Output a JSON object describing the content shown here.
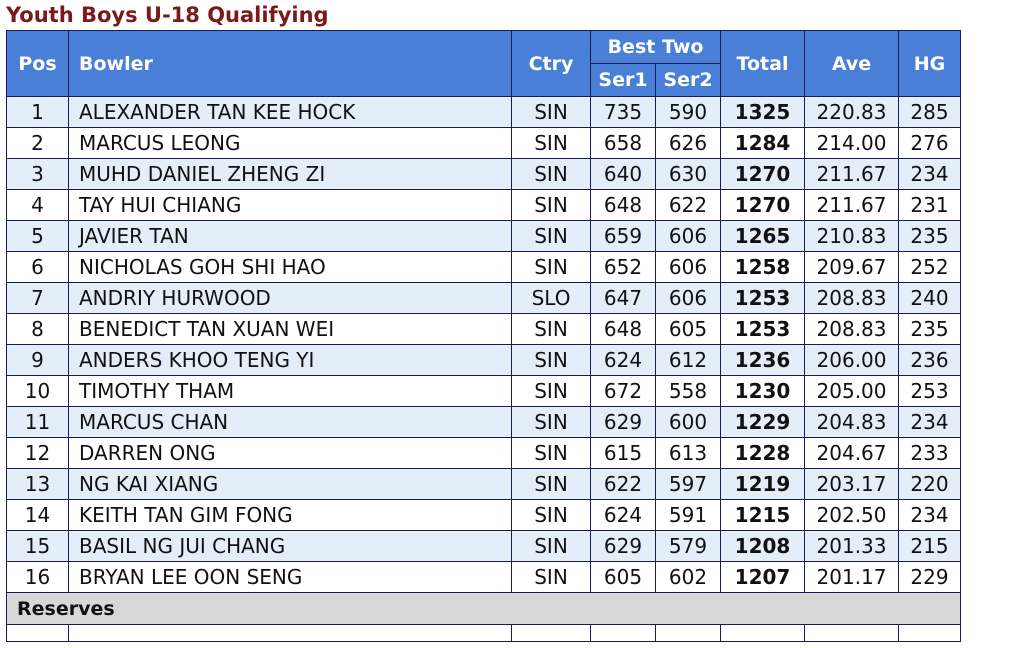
{
  "page": {
    "title": "Youth Boys U-18 Qualifying"
  },
  "table": {
    "headers": {
      "pos": "Pos",
      "bowler": "Bowler",
      "ctry": "Ctry",
      "best_two": "Best Two",
      "ser1": "Ser1",
      "ser2": "Ser2",
      "total": "Total",
      "ave": "Ave",
      "hg": "HG"
    },
    "rows": [
      {
        "pos": "1",
        "bowler": "ALEXANDER TAN KEE HOCK",
        "ctry": "SIN",
        "ser1": "735",
        "ser2": "590",
        "total": "1325",
        "ave": "220.83",
        "hg": "285"
      },
      {
        "pos": "2",
        "bowler": "MARCUS LEONG",
        "ctry": "SIN",
        "ser1": "658",
        "ser2": "626",
        "total": "1284",
        "ave": "214.00",
        "hg": "276"
      },
      {
        "pos": "3",
        "bowler": "MUHD DANIEL ZHENG ZI",
        "ctry": "SIN",
        "ser1": "640",
        "ser2": "630",
        "total": "1270",
        "ave": "211.67",
        "hg": "234"
      },
      {
        "pos": "4",
        "bowler": "TAY HUI CHIANG",
        "ctry": "SIN",
        "ser1": "648",
        "ser2": "622",
        "total": "1270",
        "ave": "211.67",
        "hg": "231"
      },
      {
        "pos": "5",
        "bowler": "JAVIER TAN",
        "ctry": "SIN",
        "ser1": "659",
        "ser2": "606",
        "total": "1265",
        "ave": "210.83",
        "hg": "235"
      },
      {
        "pos": "6",
        "bowler": "NICHOLAS GOH SHI HAO",
        "ctry": "SIN",
        "ser1": "652",
        "ser2": "606",
        "total": "1258",
        "ave": "209.67",
        "hg": "252"
      },
      {
        "pos": "7",
        "bowler": "ANDRIY HURWOOD",
        "ctry": "SLO",
        "ser1": "647",
        "ser2": "606",
        "total": "1253",
        "ave": "208.83",
        "hg": "240"
      },
      {
        "pos": "8",
        "bowler": "BENEDICT TAN XUAN WEI",
        "ctry": "SIN",
        "ser1": "648",
        "ser2": "605",
        "total": "1253",
        "ave": "208.83",
        "hg": "235"
      },
      {
        "pos": "9",
        "bowler": "ANDERS KHOO TENG YI",
        "ctry": "SIN",
        "ser1": "624",
        "ser2": "612",
        "total": "1236",
        "ave": "206.00",
        "hg": "236"
      },
      {
        "pos": "10",
        "bowler": "TIMOTHY THAM",
        "ctry": "SIN",
        "ser1": "672",
        "ser2": "558",
        "total": "1230",
        "ave": "205.00",
        "hg": "253"
      },
      {
        "pos": "11",
        "bowler": "MARCUS CHAN",
        "ctry": "SIN",
        "ser1": "629",
        "ser2": "600",
        "total": "1229",
        "ave": "204.83",
        "hg": "234"
      },
      {
        "pos": "12",
        "bowler": "DARREN ONG",
        "ctry": "SIN",
        "ser1": "615",
        "ser2": "613",
        "total": "1228",
        "ave": "204.67",
        "hg": "233"
      },
      {
        "pos": "13",
        "bowler": "NG KAI XIANG",
        "ctry": "SIN",
        "ser1": "622",
        "ser2": "597",
        "total": "1219",
        "ave": "203.17",
        "hg": "220"
      },
      {
        "pos": "14",
        "bowler": "KEITH TAN GIM FONG",
        "ctry": "SIN",
        "ser1": "624",
        "ser2": "591",
        "total": "1215",
        "ave": "202.50",
        "hg": "234"
      },
      {
        "pos": "15",
        "bowler": "BASIL NG JUI CHANG",
        "ctry": "SIN",
        "ser1": "629",
        "ser2": "579",
        "total": "1208",
        "ave": "201.33",
        "hg": "215"
      },
      {
        "pos": "16",
        "bowler": "BRYAN LEE OON SENG",
        "ctry": "SIN",
        "ser1": "605",
        "ser2": "602",
        "total": "1207",
        "ave": "201.17",
        "hg": "229"
      }
    ],
    "reserves_label": "Reserves"
  },
  "colors": {
    "title": "#7a1a1a",
    "header_bg": "#4a7fd8",
    "row_alt_bg": "#e4eef9",
    "reserves_bg": "#d8d8d8",
    "border": "#1a1a5a"
  }
}
